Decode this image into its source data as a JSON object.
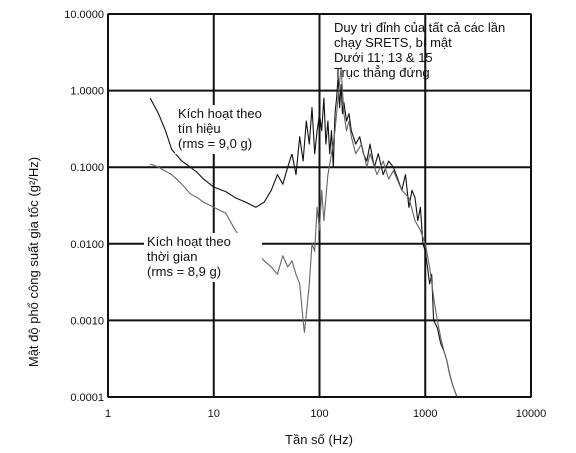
{
  "chart_data": {
    "type": "line",
    "xscale": "log",
    "yscale": "log",
    "xlim": [
      1,
      10000
    ],
    "ylim": [
      0.0001,
      10
    ],
    "grid": true,
    "xlabel": "Tần số (Hz)",
    "ylabel": "Mật độ phổ công suất gia tốc (g²/Hz)",
    "x_ticks": [
      "1",
      "10",
      "100",
      "1000",
      "10000"
    ],
    "y_ticks": [
      "0.0001",
      "0.0010",
      "0.0100",
      "0.1000",
      "1.0000",
      "10.0000"
    ],
    "annotations": {
      "top_right": [
        "Duy trì đỉnh của tất cả các lần",
        "chạy SRETS, bí mật",
        "Dưới 11; 13 & 15",
        "Trục thẳng đứng"
      ],
      "signal": [
        "Kích hoạt theo",
        "tín hiệu",
        "(rms = 9,0 g)"
      ],
      "time": [
        "Kích hoạt theo",
        "thời gian",
        "(rms = 8,9 g)"
      ]
    },
    "series": [
      {
        "color": "#111111",
        "x": [
          2.5,
          3,
          3.5,
          4,
          5,
          6,
          7,
          8,
          10,
          13,
          16,
          20,
          25,
          30,
          35,
          40,
          45,
          50,
          55,
          60,
          65,
          70,
          75,
          80,
          85,
          90,
          95,
          100,
          105,
          110,
          115,
          120,
          125,
          130,
          135,
          140,
          145,
          150,
          155,
          160,
          165,
          170,
          180,
          190,
          200,
          220,
          240,
          260,
          280,
          300,
          330,
          360,
          400,
          450,
          500,
          550,
          600,
          650,
          700,
          750,
          800,
          850,
          900,
          950,
          1000,
          1050,
          1100,
          1150,
          1200,
          1300,
          1400,
          1500,
          1600,
          1700,
          1800,
          1900,
          2000
        ],
        "y": [
          0.8,
          0.5,
          0.3,
          0.17,
          0.12,
          0.1,
          0.085,
          0.07,
          0.055,
          0.048,
          0.04,
          0.035,
          0.03,
          0.035,
          0.05,
          0.08,
          0.06,
          0.1,
          0.15,
          0.08,
          0.25,
          0.12,
          0.4,
          0.2,
          0.6,
          0.15,
          0.3,
          0.5,
          0.3,
          0.8,
          0.2,
          0.4,
          0.15,
          0.3,
          0.1,
          0.5,
          0.8,
          1.5,
          0.6,
          1.2,
          0.5,
          0.7,
          0.4,
          0.5,
          0.3,
          0.2,
          0.25,
          0.15,
          0.12,
          0.2,
          0.1,
          0.15,
          0.08,
          0.12,
          0.1,
          0.07,
          0.05,
          0.08,
          0.03,
          0.05,
          0.04,
          0.02,
          0.03,
          0.01,
          0.008,
          0.005,
          0.003,
          0.004,
          0.001,
          0.0008,
          0.0005,
          0.0004,
          0.0003,
          0.0002,
          0.00015,
          0.00012,
          0.0001
        ]
      },
      {
        "color": "#666666",
        "x": [
          2.5,
          3,
          4,
          5,
          6,
          7,
          8,
          10,
          13,
          16,
          20,
          25,
          30,
          35,
          40,
          45,
          50,
          55,
          60,
          65,
          70,
          72,
          75,
          80,
          85,
          90,
          95,
          100,
          105,
          110,
          120,
          130,
          140,
          150,
          160,
          170,
          180,
          190,
          200,
          220,
          250,
          280,
          300,
          350,
          400,
          450,
          500,
          600,
          700,
          800,
          900,
          1000,
          1100,
          1200,
          1300,
          1400,
          1500,
          1600,
          1700,
          1800,
          1900,
          2000
        ],
        "y": [
          0.11,
          0.1,
          0.08,
          0.06,
          0.045,
          0.04,
          0.035,
          0.03,
          0.025,
          0.015,
          0.01,
          0.008,
          0.006,
          0.005,
          0.004,
          0.007,
          0.005,
          0.006,
          0.004,
          0.003,
          0.001,
          0.0007,
          0.0012,
          0.003,
          0.01,
          0.008,
          0.03,
          0.015,
          0.05,
          0.02,
          0.08,
          0.15,
          0.3,
          0.8,
          2.0,
          0.5,
          0.3,
          0.4,
          0.25,
          0.15,
          0.2,
          0.1,
          0.15,
          0.08,
          0.12,
          0.07,
          0.09,
          0.05,
          0.04,
          0.02,
          0.015,
          0.01,
          0.005,
          0.002,
          0.001,
          0.0006,
          0.0004,
          0.0003,
          0.0002,
          0.00015,
          0.00012,
          0.0001
        ]
      }
    ]
  }
}
